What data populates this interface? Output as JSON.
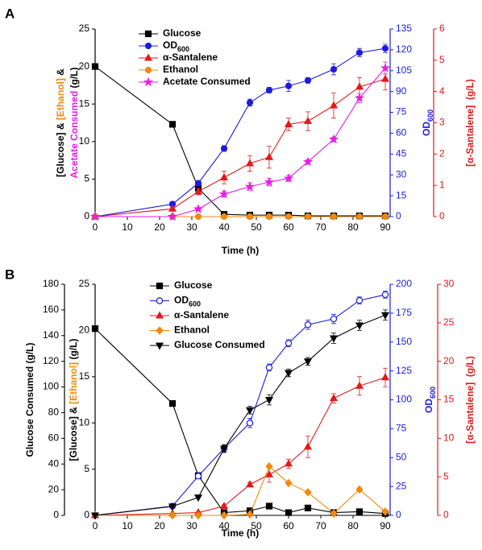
{
  "chart_data": [
    {
      "type": "line",
      "panel": "A",
      "xlabel": "Time (h)",
      "x": [
        0,
        24,
        32,
        40,
        48,
        54,
        60,
        66,
        74,
        82,
        90
      ],
      "xlim": [
        0,
        90
      ],
      "xticks": [
        0,
        10,
        20,
        30,
        40,
        50,
        60,
        70,
        80,
        90
      ],
      "ylim": [
        0,
        25
      ],
      "yticks": [
        0,
        5,
        10,
        15,
        20,
        25
      ],
      "ylabel": [
        [
          {
            "text": "[Glucose] & "
          },
          {
            "text": "[Ethanol]",
            "color": "#f0890e"
          },
          {
            "text": " &"
          }
        ],
        [
          {
            "text": "Acetate Consumed",
            "color": "#e61ee6"
          },
          {
            "text": " (g/L)"
          }
        ]
      ],
      "y2lim": [
        0,
        135
      ],
      "y2ticks": [
        0,
        15,
        30,
        45,
        60,
        75,
        90,
        105,
        120,
        135
      ],
      "y2color": "#1c1cdc",
      "y2label": [
        [
          {
            "text": "OD"
          },
          {
            "text": "600",
            "sub": true
          }
        ]
      ],
      "y3lim": [
        0,
        6
      ],
      "y3ticks": [
        0,
        1,
        2,
        3,
        4,
        5,
        6
      ],
      "y3color": "#e01b1b",
      "y3label": [
        [
          {
            "text": "[α-Santalene]  (g/L)"
          }
        ]
      ],
      "series": [
        {
          "name": "Glucose",
          "color": "#000000",
          "marker": "square",
          "axis": "y",
          "values": [
            20,
            12.3,
            3.8,
            0.3,
            0.2,
            0.2,
            0.2,
            0.1,
            0.1,
            0.1,
            0.1
          ]
        },
        {
          "name": "OD600",
          "name_parts": [
            {
              "text": "OD"
            },
            {
              "text": "600",
              "sub": true
            }
          ],
          "color": "#1c1cdc",
          "marker": "circle",
          "axis": "y2",
          "values": [
            0,
            9,
            24,
            49,
            82,
            91,
            94,
            98,
            106,
            118,
            121
          ],
          "errors": [
            0,
            0.5,
            1.5,
            2,
            2.5,
            2,
            4,
            2,
            4,
            3,
            3
          ]
        },
        {
          "name": "α-Santalene",
          "color": "#e01b1b",
          "marker": "triangle",
          "axis": "y3",
          "values": [
            0,
            0.25,
            0.8,
            1.25,
            1.7,
            1.9,
            2.95,
            3.05,
            3.55,
            4.15,
            4.4
          ],
          "errors": [
            0,
            0.05,
            0.1,
            0.2,
            0.25,
            0.35,
            0.2,
            0.3,
            0.4,
            0.3,
            0.35
          ]
        },
        {
          "name": "Ethanol",
          "color": "#f0890e",
          "marker": "circle",
          "axis": "y",
          "values": [
            0,
            0,
            0,
            0,
            0,
            0,
            0,
            0,
            0,
            0,
            0
          ]
        },
        {
          "name": "Acetate Consumed",
          "color": "#e61ee6",
          "marker": "star",
          "axis": "y",
          "values": [
            0,
            0,
            1,
            3,
            4,
            4.6,
            5.1,
            7.3,
            10.3,
            15.8,
            19.8
          ],
          "errors": [
            0,
            0,
            0.2,
            0.4,
            0.5,
            0.5,
            0.4,
            0.3,
            0.3,
            0.6,
            0.8
          ]
        }
      ]
    },
    {
      "type": "line",
      "panel": "B",
      "xlabel": "Time (h)",
      "x": [
        0,
        24,
        32,
        40,
        48,
        54,
        60,
        66,
        74,
        82,
        90
      ],
      "xlim": [
        0,
        90
      ],
      "xticks": [
        0,
        10,
        20,
        30,
        40,
        50,
        60,
        70,
        80,
        90
      ],
      "ylim": [
        0,
        25
      ],
      "yticks": [
        0,
        5,
        10,
        15,
        20,
        25
      ],
      "ylabel": [
        [
          {
            "text": "[Glucose] & "
          },
          {
            "text": "[Ethanol]",
            "color": "#f0890e"
          },
          {
            "text": " (g/L)"
          }
        ]
      ],
      "y2lim": [
        0,
        200
      ],
      "y2ticks": [
        0,
        25,
        50,
        75,
        100,
        125,
        150,
        175,
        200
      ],
      "y2color": "#1c1cdc",
      "y2label": [
        [
          {
            "text": "OD"
          },
          {
            "text": "600",
            "sub": true
          }
        ]
      ],
      "y3lim": [
        0,
        30
      ],
      "y3ticks": [
        0,
        5,
        10,
        15,
        20,
        25,
        30
      ],
      "y3color": "#e01b1b",
      "y3label": [
        [
          {
            "text": "[α-Santalene]  (g/L)"
          }
        ]
      ],
      "y4lim": [
        0,
        180
      ],
      "y4ticks": [
        0,
        20,
        40,
        60,
        80,
        100,
        120,
        140,
        160,
        180
      ],
      "y4label": [
        [
          {
            "text": "Glucose Consumed (g/L)"
          }
        ]
      ],
      "series": [
        {
          "name": "Glucose",
          "color": "#000000",
          "marker": "square",
          "axis": "y",
          "values": [
            20.2,
            12.1,
            4.3,
            0.3,
            0.5,
            1.0,
            0.3,
            0.8,
            0.3,
            0.4,
            0.2
          ],
          "errors": [
            0,
            0.3,
            0.2,
            0,
            0,
            0,
            0,
            0,
            0,
            0,
            0
          ]
        },
        {
          "name": "OD600",
          "name_parts": [
            {
              "text": "OD"
            },
            {
              "text": "600",
              "sub": true
            }
          ],
          "color": "#1c1cdc",
          "marker": "circle-open",
          "axis": "y2",
          "values": [
            0,
            8,
            34,
            58,
            80,
            128,
            149,
            165,
            170,
            186,
            191
          ],
          "errors": [
            0,
            1,
            2,
            3,
            4,
            3,
            3,
            4,
            4,
            3,
            3
          ]
        },
        {
          "name": "α-Santalene",
          "color": "#e01b1b",
          "marker": "triangle",
          "axis": "y3",
          "values": [
            0,
            0.24,
            0.36,
            1.2,
            4.0,
            5.3,
            6.7,
            8.9,
            15.2,
            16.8,
            17.9
          ],
          "errors": [
            0,
            0,
            0.1,
            0.2,
            0.3,
            1.0,
            0.6,
            1.4,
            0.6,
            1.2,
            1.2
          ]
        },
        {
          "name": "Ethanol",
          "color": "#f0890e",
          "marker": "diamond",
          "axis": "y",
          "values": [
            0,
            0,
            0,
            0,
            0.1,
            5.3,
            3.5,
            2.5,
            0.2,
            2.8,
            0.4
          ]
        },
        {
          "name": "Glucose Consumed",
          "color": "#000000",
          "marker": "triangle-down",
          "axis": "y4",
          "values": [
            0,
            7,
            14,
            52,
            82,
            90,
            111,
            120,
            138,
            148,
            156
          ],
          "errors": [
            0,
            0,
            0,
            3,
            3,
            4,
            3,
            3,
            4,
            4,
            4
          ]
        }
      ]
    }
  ]
}
